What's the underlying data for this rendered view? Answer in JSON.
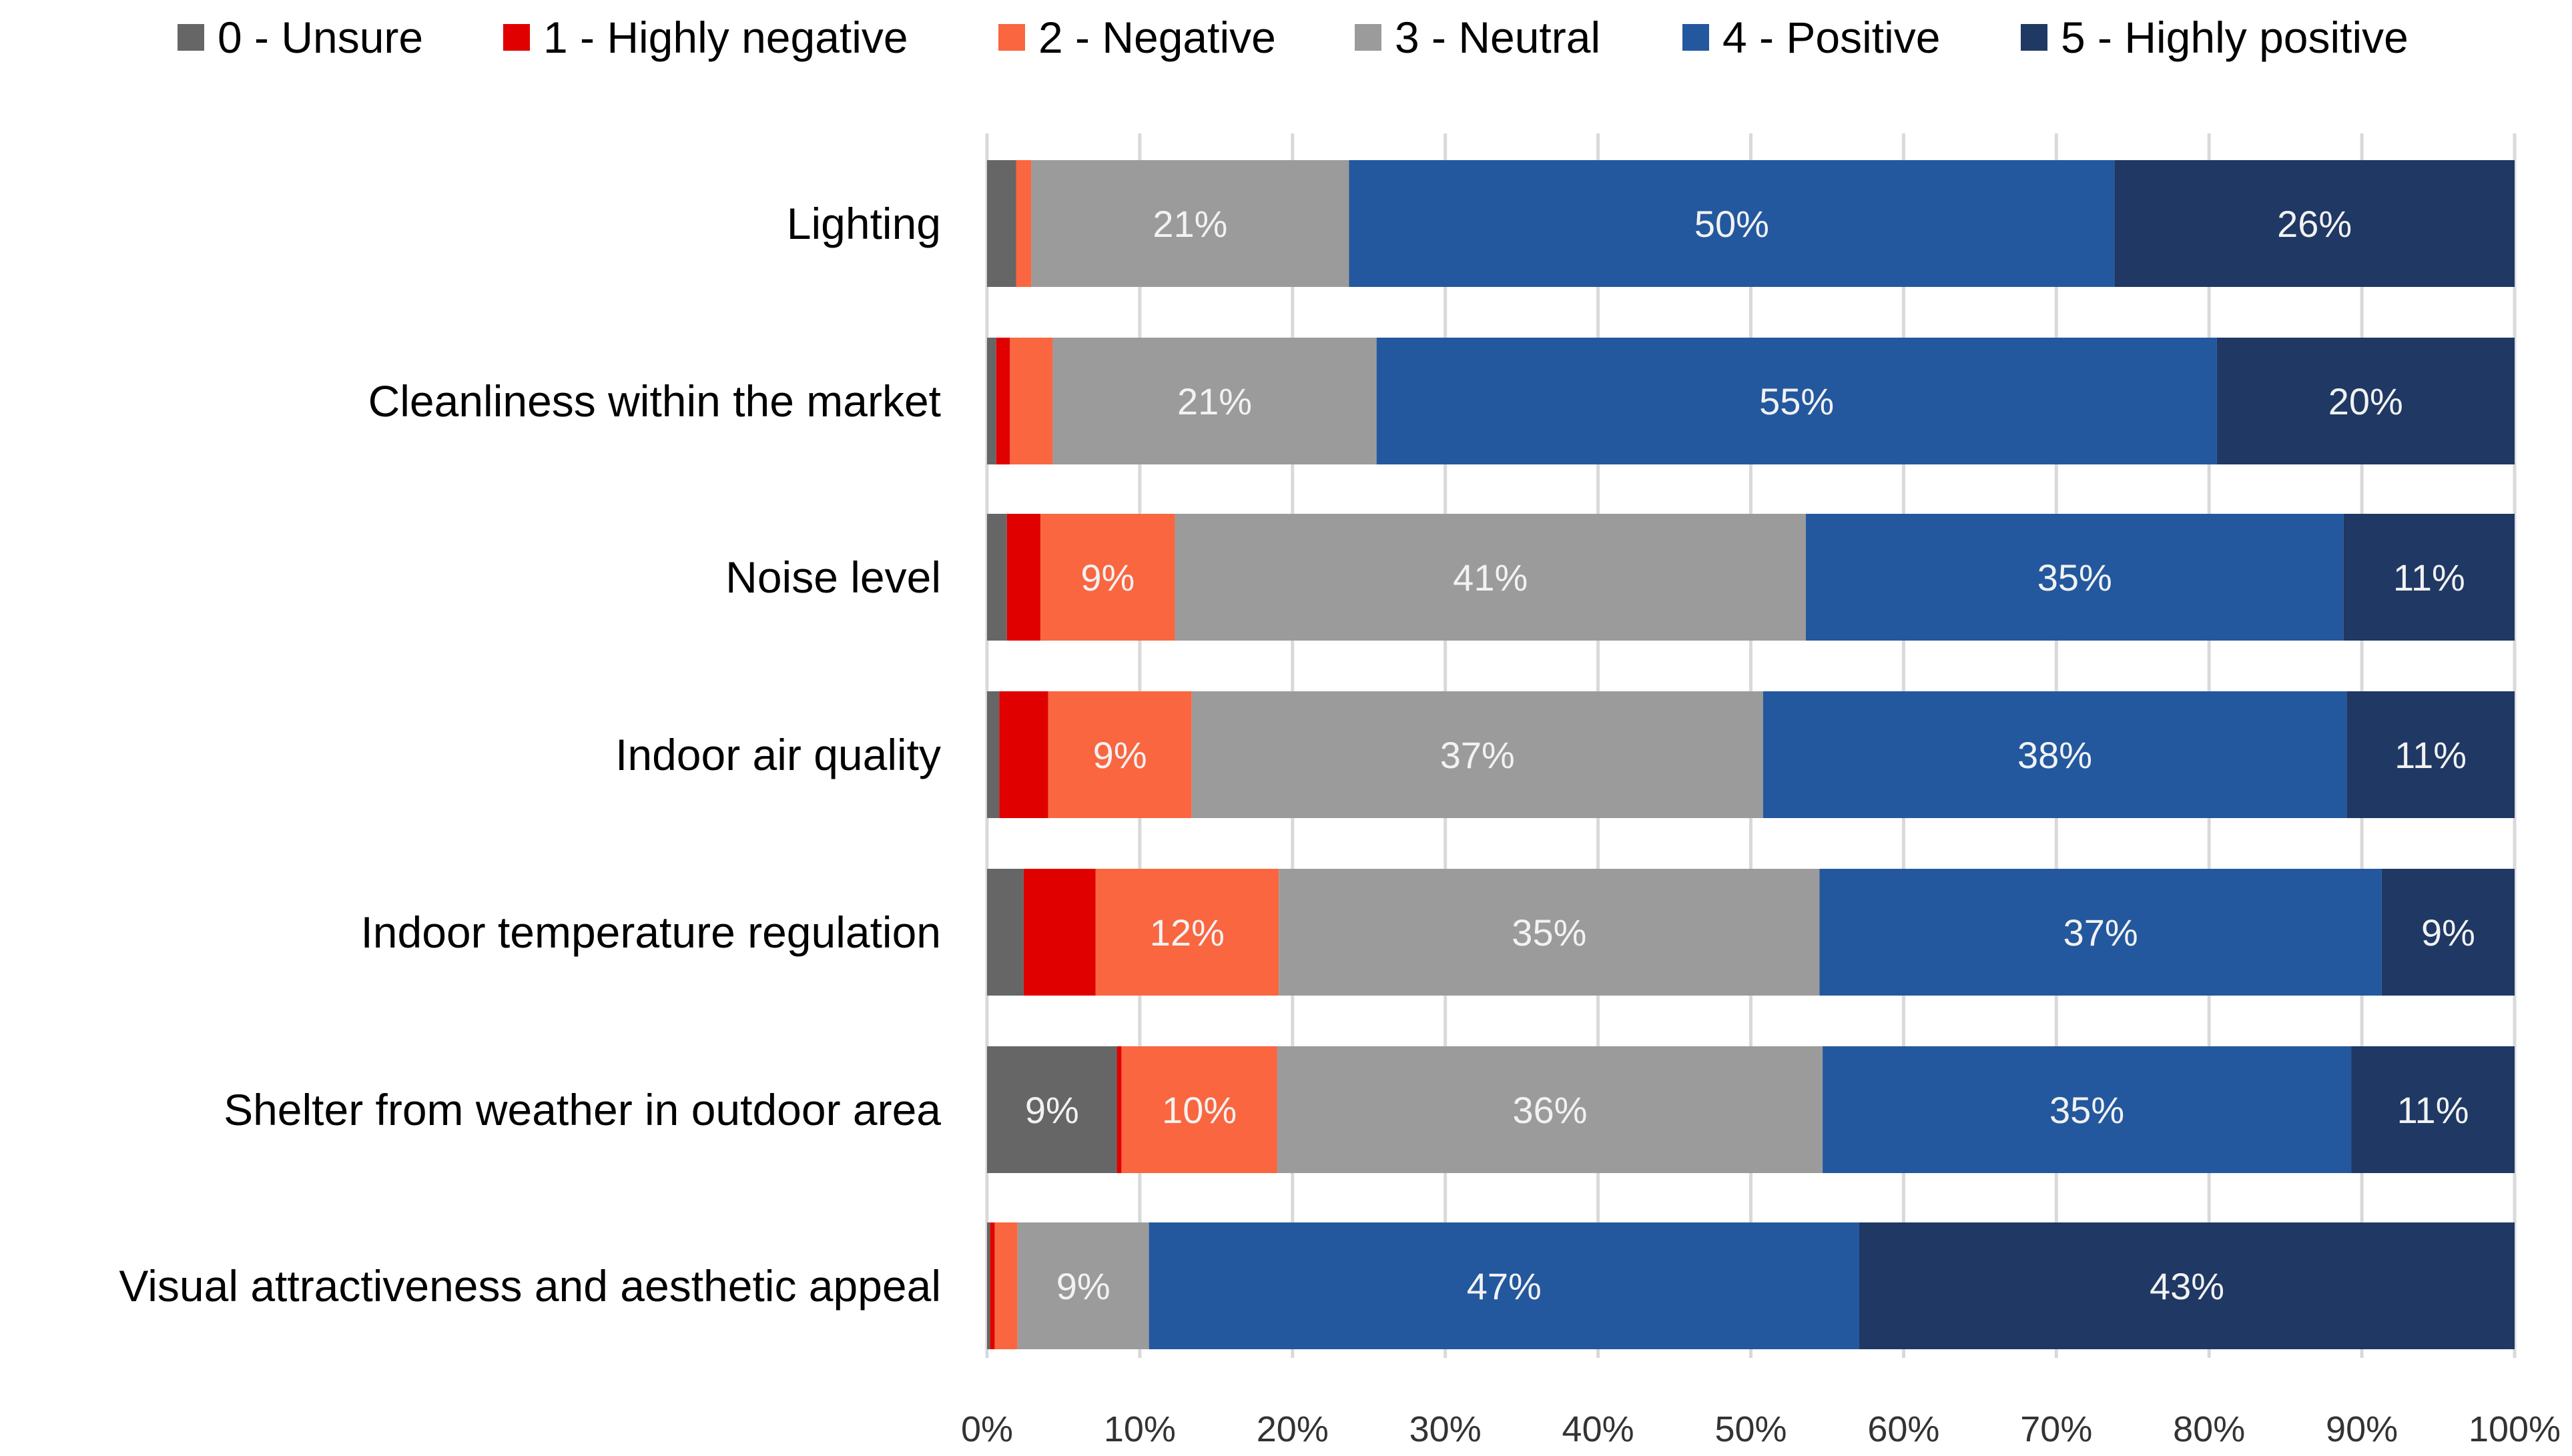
{
  "chart_data": {
    "type": "bar",
    "orientation": "horizontal",
    "stacked": "100%",
    "title": "",
    "xlabel": "",
    "ylabel": "",
    "xlim": [
      0,
      100
    ],
    "x_ticks": [
      "0%",
      "10%",
      "20%",
      "30%",
      "40%",
      "50%",
      "60%",
      "70%",
      "80%",
      "90%",
      "100%"
    ],
    "grid": "vertical",
    "legend_position": "top",
    "categories": [
      "Lighting",
      "Cleanliness within the market",
      "Noise level",
      "Indoor air quality",
      "Indoor temperature regulation",
      "Shelter from weather in outdoor area",
      "Visual attractiveness and aesthetic appeal"
    ],
    "series": [
      {
        "name": "0 - Unsure",
        "color": "#666666",
        "values": [
          1.9,
          0.6,
          1.3,
          0.8,
          2.4,
          8.5,
          0.2
        ]
      },
      {
        "name": "1 - Highly negative",
        "color": "#e00000",
        "values": [
          0,
          0.9,
          2.2,
          3.2,
          4.7,
          0.3,
          0.3
        ]
      },
      {
        "name": "2 - Negative",
        "color": "#f96640",
        "values": [
          1.0,
          2.8,
          8.8,
          9.4,
          12.0,
          10.2,
          1.5
        ]
      },
      {
        "name": "3 - Neutral",
        "color": "#9b9b9b",
        "values": [
          20.8,
          21.2,
          41.3,
          37.4,
          35.4,
          35.7,
          8.6
        ]
      },
      {
        "name": "4 - Positive",
        "color": "#23589e",
        "values": [
          50.1,
          55.0,
          35.2,
          38.2,
          36.8,
          34.6,
          46.5
        ]
      },
      {
        "name": "5 - Highly positive",
        "color": "#1f3864",
        "values": [
          26.2,
          19.5,
          11.2,
          11.0,
          8.7,
          10.7,
          42.9
        ]
      }
    ],
    "data_labels": [
      [
        "",
        "",
        "",
        "21%",
        "50%",
        "26%"
      ],
      [
        "",
        "",
        "",
        "21%",
        "55%",
        "20%"
      ],
      [
        "",
        "",
        "9%",
        "41%",
        "35%",
        "11%"
      ],
      [
        "",
        "",
        "9%",
        "37%",
        "38%",
        "11%"
      ],
      [
        "",
        "",
        "12%",
        "35%",
        "37%",
        "9%"
      ],
      [
        "9%",
        "",
        "10%",
        "36%",
        "35%",
        "11%"
      ],
      [
        "",
        "",
        "",
        "9%",
        "47%",
        "43%"
      ]
    ]
  }
}
